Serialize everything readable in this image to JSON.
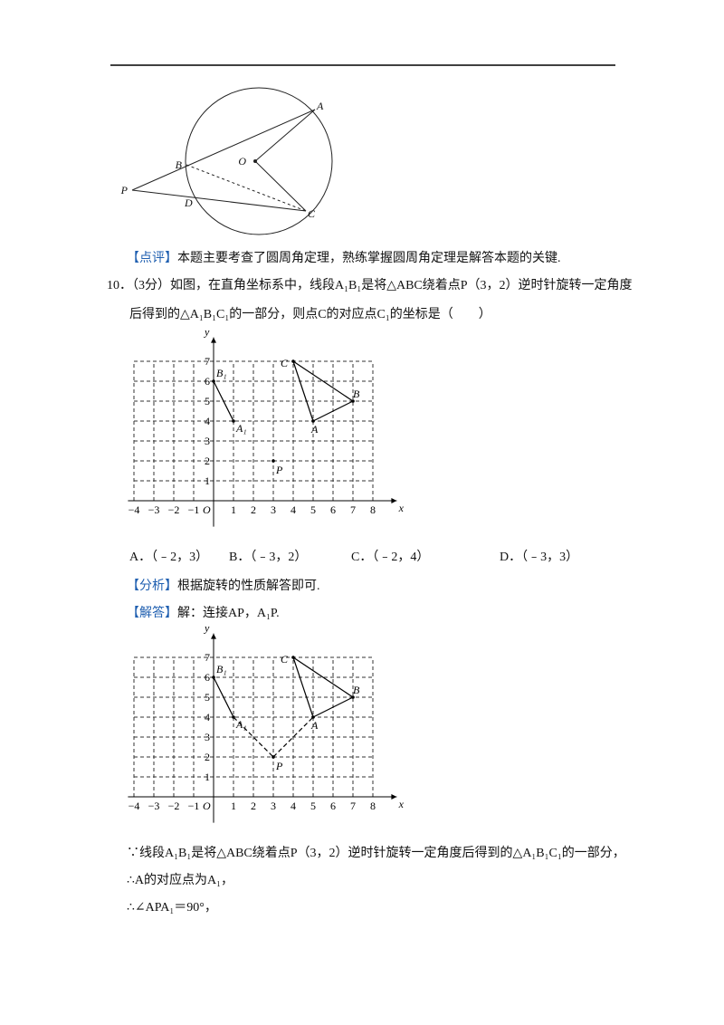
{
  "figure1": {
    "labels": [
      "A",
      "O",
      "B",
      "P",
      "D",
      "C"
    ]
  },
  "comment": {
    "tag": "【点评】",
    "text": "本题主要考查了圆周角定理，熟练掌握圆周角定理是解答本题的关键."
  },
  "question": {
    "line1": "10．（3分）如图，在直角坐标系中，线段A₁B₁是将△ABC绕着点P（3，2）逆时针旋转一定角度",
    "line2": "后得到的△A₁B₁C₁的一部分，则点C的对应点C₁的坐标是（　　）",
    "options": [
      "A．（﹣2，3）",
      "B．（﹣3，2）",
      "C．（﹣2，4）",
      "D．（﹣3，3）"
    ]
  },
  "figure2": {
    "x_ticks": [
      "−4",
      "−3",
      "−2",
      "−1",
      "1",
      "2",
      "3",
      "4",
      "5",
      "6",
      "7",
      "8"
    ],
    "y_ticks": [
      "1",
      "2",
      "3",
      "4",
      "5",
      "6",
      "7"
    ],
    "origin": "O",
    "x_axis": "x",
    "y_axis": "y",
    "points": [
      "B₁",
      "A₁",
      "C",
      "B",
      "A",
      "P"
    ]
  },
  "analysis": {
    "tag": "【分析】",
    "text": "根据旋转的性质解答即可."
  },
  "solution": {
    "tag": "【解答】",
    "text": "解：连接AP，A₁P.",
    "steps": [
      "∵线段A₁B₁是将△ABC绕着点P（3，2）逆时针旋转一定角度后得到的△A₁B₁C₁的一部分，",
      "∴A的对应点为A₁，",
      "∴∠APA₁＝90°，"
    ]
  },
  "figure3": {
    "x_ticks": [
      "−4",
      "−3",
      "−2",
      "−1",
      "1",
      "2",
      "3",
      "4",
      "5",
      "6",
      "7",
      "8"
    ],
    "y_ticks": [
      "1",
      "2",
      "3",
      "4",
      "5",
      "6",
      "7"
    ],
    "origin": "O",
    "x_axis": "x",
    "y_axis": "y",
    "points": [
      "B₁",
      "A₁",
      "C",
      "B",
      "A",
      "P"
    ]
  }
}
